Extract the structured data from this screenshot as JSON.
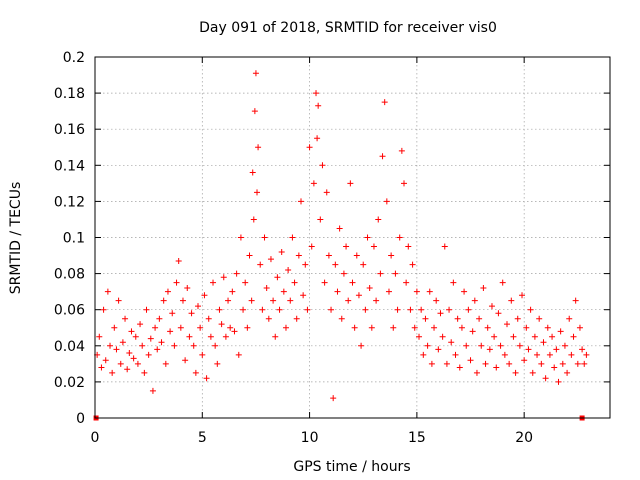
{
  "chart_data": {
    "type": "scatter",
    "title": "Day 091 of 2018, SRMTID for receiver vis0",
    "xlabel": "GPS time / hours",
    "ylabel": "SRMTID / TECUs",
    "xlim": [
      0,
      24
    ],
    "ylim": [
      0,
      0.2
    ],
    "xticks": [
      0,
      5,
      10,
      15,
      20
    ],
    "xtick_labels": [
      "0",
      "5",
      "10",
      "15",
      "20"
    ],
    "yticks": [
      0,
      0.02,
      0.04,
      0.06,
      0.08,
      0.1,
      0.12,
      0.14,
      0.16,
      0.18,
      0.2
    ],
    "ytick_labels": [
      "0",
      "0.02",
      "0.04",
      "0.06",
      "0.08",
      "0.1",
      "0.12",
      "0.14",
      "0.16",
      "0.18",
      "0.2"
    ],
    "grid": true,
    "marker": "+",
    "color": "#ff0000",
    "baseline_markers": [
      [
        0.05,
        0
      ],
      [
        22.7,
        0
      ]
    ],
    "series": [
      {
        "name": "vis0",
        "points": [
          [
            0.1,
            0.035
          ],
          [
            0.2,
            0.045
          ],
          [
            0.3,
            0.028
          ],
          [
            0.4,
            0.06
          ],
          [
            0.5,
            0.032
          ],
          [
            0.6,
            0.07
          ],
          [
            0.7,
            0.04
          ],
          [
            0.8,
            0.025
          ],
          [
            0.9,
            0.05
          ],
          [
            1.0,
            0.038
          ],
          [
            1.1,
            0.065
          ],
          [
            1.2,
            0.03
          ],
          [
            1.3,
            0.042
          ],
          [
            1.4,
            0.055
          ],
          [
            1.5,
            0.027
          ],
          [
            1.6,
            0.036
          ],
          [
            1.7,
            0.048
          ],
          [
            1.8,
            0.033
          ],
          [
            1.9,
            0.045
          ],
          [
            2.0,
            0.03
          ],
          [
            2.1,
            0.052
          ],
          [
            2.2,
            0.04
          ],
          [
            2.3,
            0.025
          ],
          [
            2.4,
            0.06
          ],
          [
            2.5,
            0.035
          ],
          [
            2.6,
            0.044
          ],
          [
            2.7,
            0.015
          ],
          [
            2.8,
            0.05
          ],
          [
            2.9,
            0.038
          ],
          [
            3.0,
            0.055
          ],
          [
            3.1,
            0.042
          ],
          [
            3.2,
            0.065
          ],
          [
            3.3,
            0.03
          ],
          [
            3.4,
            0.07
          ],
          [
            3.5,
            0.048
          ],
          [
            3.6,
            0.058
          ],
          [
            3.7,
            0.04
          ],
          [
            3.8,
            0.075
          ],
          [
            3.9,
            0.087
          ],
          [
            4.0,
            0.05
          ],
          [
            4.1,
            0.065
          ],
          [
            4.2,
            0.032
          ],
          [
            4.3,
            0.072
          ],
          [
            4.4,
            0.045
          ],
          [
            4.5,
            0.058
          ],
          [
            4.6,
            0.04
          ],
          [
            4.7,
            0.025
          ],
          [
            4.8,
            0.062
          ],
          [
            4.9,
            0.05
          ],
          [
            5.0,
            0.035
          ],
          [
            5.1,
            0.068
          ],
          [
            5.2,
            0.022
          ],
          [
            5.3,
            0.055
          ],
          [
            5.4,
            0.045
          ],
          [
            5.5,
            0.075
          ],
          [
            5.6,
            0.04
          ],
          [
            5.7,
            0.03
          ],
          [
            5.8,
            0.06
          ],
          [
            5.9,
            0.052
          ],
          [
            6.0,
            0.078
          ],
          [
            6.1,
            0.045
          ],
          [
            6.2,
            0.065
          ],
          [
            6.3,
            0.05
          ],
          [
            6.4,
            0.07
          ],
          [
            6.5,
            0.048
          ],
          [
            6.6,
            0.08
          ],
          [
            6.7,
            0.035
          ],
          [
            6.8,
            0.1
          ],
          [
            6.9,
            0.06
          ],
          [
            7.0,
            0.075
          ],
          [
            7.1,
            0.05
          ],
          [
            7.2,
            0.09
          ],
          [
            7.3,
            0.065
          ],
          [
            7.35,
            0.136
          ],
          [
            7.4,
            0.11
          ],
          [
            7.45,
            0.17
          ],
          [
            7.5,
            0.191
          ],
          [
            7.55,
            0.125
          ],
          [
            7.6,
            0.15
          ],
          [
            7.7,
            0.085
          ],
          [
            7.8,
            0.06
          ],
          [
            7.9,
            0.1
          ],
          [
            8.0,
            0.072
          ],
          [
            8.1,
            0.055
          ],
          [
            8.2,
            0.088
          ],
          [
            8.3,
            0.065
          ],
          [
            8.4,
            0.045
          ],
          [
            8.5,
            0.078
          ],
          [
            8.6,
            0.06
          ],
          [
            8.7,
            0.092
          ],
          [
            8.8,
            0.07
          ],
          [
            8.9,
            0.05
          ],
          [
            9.0,
            0.082
          ],
          [
            9.1,
            0.065
          ],
          [
            9.2,
            0.1
          ],
          [
            9.3,
            0.075
          ],
          [
            9.4,
            0.055
          ],
          [
            9.5,
            0.09
          ],
          [
            9.6,
            0.12
          ],
          [
            9.7,
            0.068
          ],
          [
            9.8,
            0.085
          ],
          [
            9.9,
            0.06
          ],
          [
            10.0,
            0.15
          ],
          [
            10.1,
            0.095
          ],
          [
            10.2,
            0.13
          ],
          [
            10.3,
            0.18
          ],
          [
            10.35,
            0.155
          ],
          [
            10.4,
            0.173
          ],
          [
            10.5,
            0.11
          ],
          [
            10.6,
            0.14
          ],
          [
            10.7,
            0.075
          ],
          [
            10.8,
            0.125
          ],
          [
            10.9,
            0.09
          ],
          [
            11.0,
            0.06
          ],
          [
            11.1,
            0.011
          ],
          [
            11.2,
            0.085
          ],
          [
            11.3,
            0.07
          ],
          [
            11.4,
            0.105
          ],
          [
            11.5,
            0.055
          ],
          [
            11.6,
            0.08
          ],
          [
            11.7,
            0.095
          ],
          [
            11.8,
            0.065
          ],
          [
            11.9,
            0.13
          ],
          [
            12.0,
            0.075
          ],
          [
            12.1,
            0.05
          ],
          [
            12.2,
            0.09
          ],
          [
            12.3,
            0.068
          ],
          [
            12.4,
            0.04
          ],
          [
            12.5,
            0.085
          ],
          [
            12.6,
            0.06
          ],
          [
            12.7,
            0.1
          ],
          [
            12.8,
            0.072
          ],
          [
            12.9,
            0.05
          ],
          [
            13.0,
            0.095
          ],
          [
            13.1,
            0.065
          ],
          [
            13.2,
            0.11
          ],
          [
            13.3,
            0.08
          ],
          [
            13.4,
            0.145
          ],
          [
            13.5,
            0.175
          ],
          [
            13.6,
            0.12
          ],
          [
            13.7,
            0.07
          ],
          [
            13.8,
            0.09
          ],
          [
            13.9,
            0.05
          ],
          [
            14.0,
            0.08
          ],
          [
            14.1,
            0.06
          ],
          [
            14.2,
            0.1
          ],
          [
            14.3,
            0.148
          ],
          [
            14.4,
            0.13
          ],
          [
            14.5,
            0.075
          ],
          [
            14.6,
            0.095
          ],
          [
            14.7,
            0.06
          ],
          [
            14.8,
            0.085
          ],
          [
            14.9,
            0.05
          ],
          [
            15.0,
            0.07
          ],
          [
            15.1,
            0.045
          ],
          [
            15.2,
            0.06
          ],
          [
            15.3,
            0.035
          ],
          [
            15.4,
            0.055
          ],
          [
            15.5,
            0.04
          ],
          [
            15.6,
            0.07
          ],
          [
            15.7,
            0.03
          ],
          [
            15.8,
            0.05
          ],
          [
            15.9,
            0.065
          ],
          [
            16.0,
            0.038
          ],
          [
            16.1,
            0.058
          ],
          [
            16.2,
            0.045
          ],
          [
            16.3,
            0.095
          ],
          [
            16.4,
            0.03
          ],
          [
            16.5,
            0.06
          ],
          [
            16.6,
            0.042
          ],
          [
            16.7,
            0.075
          ],
          [
            16.8,
            0.035
          ],
          [
            16.9,
            0.055
          ],
          [
            17.0,
            0.028
          ],
          [
            17.1,
            0.05
          ],
          [
            17.2,
            0.07
          ],
          [
            17.3,
            0.04
          ],
          [
            17.4,
            0.06
          ],
          [
            17.5,
            0.032
          ],
          [
            17.6,
            0.048
          ],
          [
            17.7,
            0.065
          ],
          [
            17.8,
            0.025
          ],
          [
            17.9,
            0.055
          ],
          [
            18.0,
            0.04
          ],
          [
            18.1,
            0.072
          ],
          [
            18.2,
            0.03
          ],
          [
            18.3,
            0.05
          ],
          [
            18.4,
            0.038
          ],
          [
            18.5,
            0.062
          ],
          [
            18.6,
            0.045
          ],
          [
            18.7,
            0.028
          ],
          [
            18.8,
            0.058
          ],
          [
            18.9,
            0.04
          ],
          [
            19.0,
            0.075
          ],
          [
            19.1,
            0.035
          ],
          [
            19.2,
            0.052
          ],
          [
            19.3,
            0.03
          ],
          [
            19.4,
            0.065
          ],
          [
            19.5,
            0.045
          ],
          [
            19.6,
            0.025
          ],
          [
            19.7,
            0.055
          ],
          [
            19.8,
            0.04
          ],
          [
            19.9,
            0.068
          ],
          [
            20.0,
            0.032
          ],
          [
            20.1,
            0.05
          ],
          [
            20.2,
            0.038
          ],
          [
            20.3,
            0.06
          ],
          [
            20.4,
            0.025
          ],
          [
            20.5,
            0.045
          ],
          [
            20.6,
            0.035
          ],
          [
            20.7,
            0.055
          ],
          [
            20.8,
            0.03
          ],
          [
            20.9,
            0.042
          ],
          [
            21.0,
            0.022
          ],
          [
            21.1,
            0.05
          ],
          [
            21.2,
            0.035
          ],
          [
            21.3,
            0.045
          ],
          [
            21.4,
            0.028
          ],
          [
            21.5,
            0.038
          ],
          [
            21.6,
            0.02
          ],
          [
            21.7,
            0.048
          ],
          [
            21.8,
            0.03
          ],
          [
            21.9,
            0.04
          ],
          [
            22.0,
            0.025
          ],
          [
            22.1,
            0.055
          ],
          [
            22.2,
            0.035
          ],
          [
            22.3,
            0.045
          ],
          [
            22.4,
            0.065
          ],
          [
            22.5,
            0.03
          ],
          [
            22.6,
            0.05
          ],
          [
            22.7,
            0.038
          ],
          [
            22.8,
            0.03
          ],
          [
            22.9,
            0.035
          ]
        ]
      }
    ]
  }
}
